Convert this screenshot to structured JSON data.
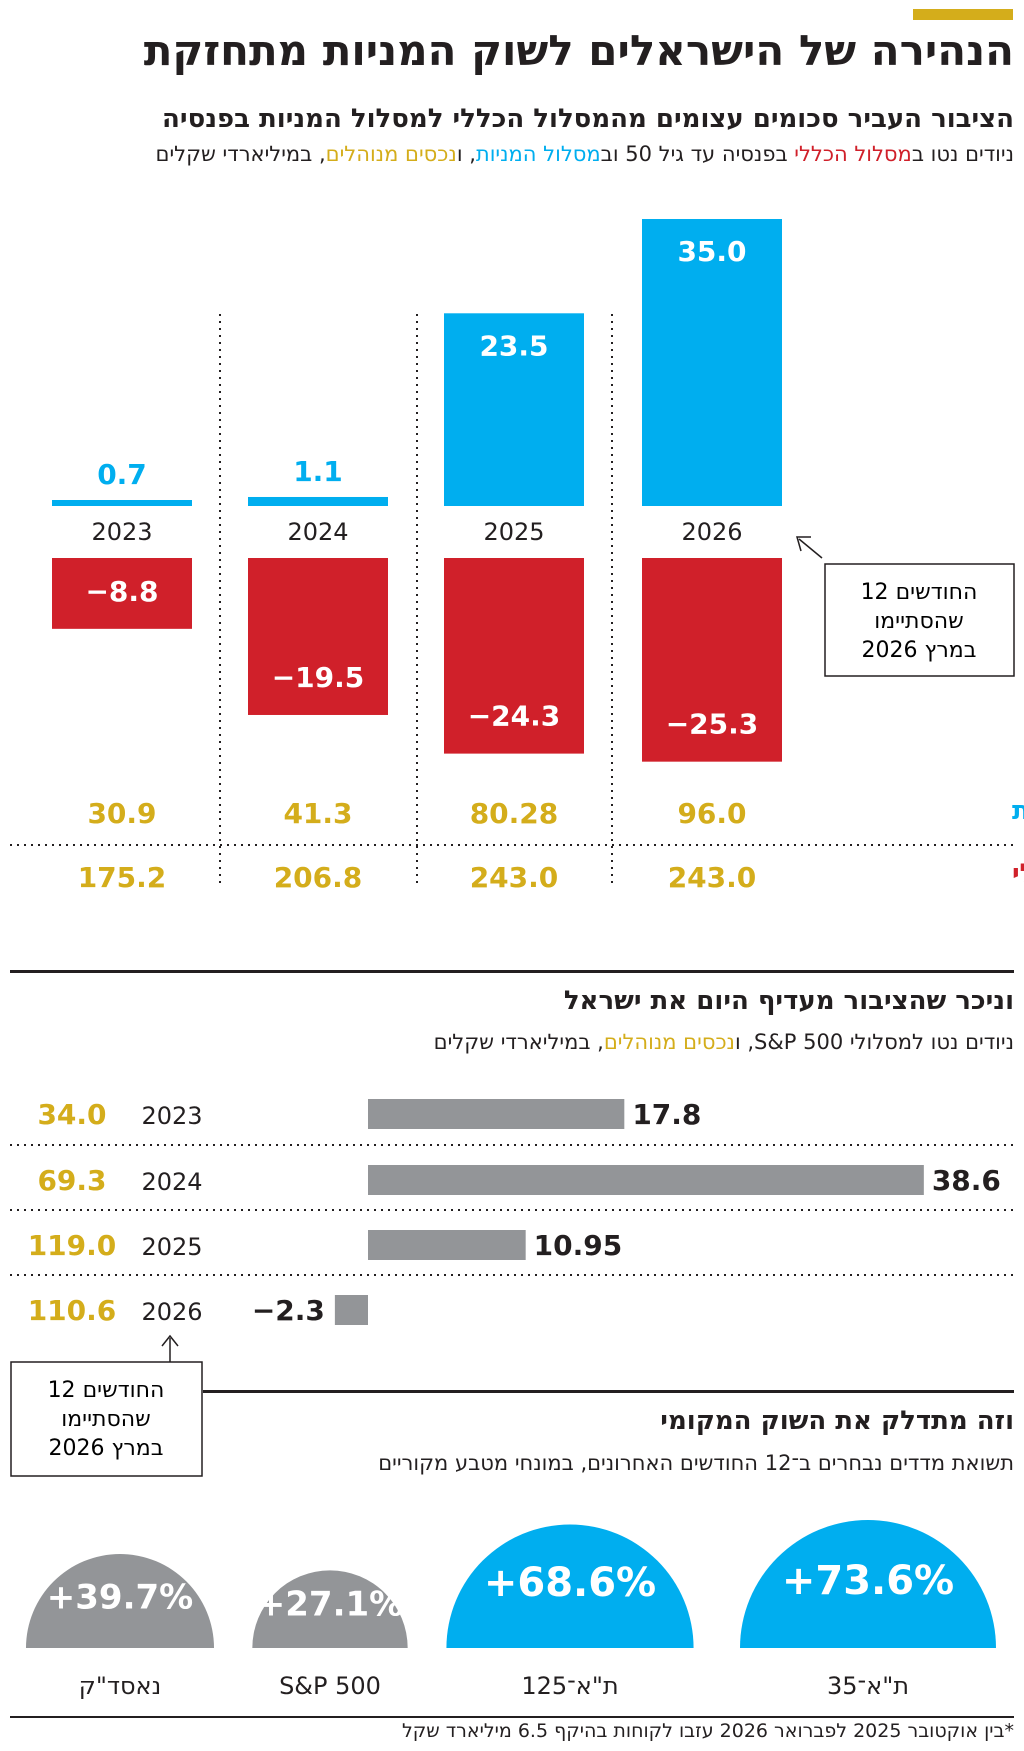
{
  "header": {
    "main_title": "הנהירה של הישראלים לשוק המניות מתחזקת"
  },
  "section1": {
    "title": "הציבור העביר סכומים עצומים מהמסלול הכללי למסלול המניות בפנסיה",
    "sub_parts": [
      "ניודים נטו ב",
      "מסלול הכללי",
      " בפנסיה עד גיל 50 וב",
      "מסלול המניות",
      ", ו",
      "נכסים מנוהלים",
      ", במיליארדי שקלים"
    ],
    "annotation": [
      "12 החודשים",
      "שהסתיימו",
      "במרץ 2026"
    ],
    "row_label_stocks": "מסלול מניות",
    "row_label_general": "מסלול כללי"
  },
  "section2": {
    "title": "וניכר שהציבור מעדיף היום את ישראל",
    "sub_parts": [
      "ניודים נטו למסלולי S&P 500, ו",
      "נכסים מנוהלים",
      ", במיליארדי שקלים"
    ],
    "annotation": [
      "12 החודשים",
      "שהסתיימו",
      "במרץ 2026"
    ]
  },
  "section3": {
    "title": "וזה מתדלק את השוק המקומי",
    "subtitle": "תשואת מדדים נבחרים ב־12 החודשים האחרונים, במונחי מטבע מקוריים"
  },
  "footnote": "*בין אוקטובר 2025 לפברואר 2026 עזבו לקוחות בהיקף 6.5 מיליארד שקל",
  "colors": {
    "blue": "#00aeef",
    "red": "#d0202a",
    "gold": "#d4ad1b",
    "gray": "#939598",
    "dark": "#231f20"
  },
  "chart_data": [
    {
      "type": "bar",
      "categories": [
        "2023",
        "2024",
        "2025",
        "2026"
      ],
      "series": [
        {
          "name": "מסלול המניות",
          "values": [
            0.7,
            1.1,
            23.5,
            35.0
          ],
          "labels": [
            "0.7",
            "1.1",
            "23.5",
            "35.0"
          ]
        },
        {
          "name": "מסלול הכללי",
          "values": [
            -8.8,
            -19.5,
            -24.3,
            -25.3
          ],
          "labels": [
            "−8.8",
            "−19.5",
            "−24.3",
            "−25.3"
          ]
        }
      ],
      "assets_stocks": [
        "30.9",
        "41.3",
        "80.28",
        "96.0"
      ],
      "assets_general": [
        "175.2",
        "206.8",
        "243.0",
        "243.0"
      ],
      "grid": false
    },
    {
      "type": "bar",
      "orientation": "horizontal",
      "categories": [
        "2023",
        "2024",
        "2025",
        "2026"
      ],
      "values": [
        17.8,
        38.6,
        10.95,
        -2.3
      ],
      "labels": [
        "17.8",
        "38.6",
        "10.95",
        "−2.3"
      ],
      "assets": [
        "34.0",
        "69.3",
        "119.0",
        "110.6"
      ]
    },
    {
      "type": "bar",
      "categories": [
        "ת\"א־35",
        "ת\"א־125",
        "S&P 500",
        "נאסד\"ק"
      ],
      "values": [
        73.6,
        68.6,
        27.1,
        39.7
      ],
      "labels": [
        "+73.6%",
        "+68.6%",
        "+27.1%",
        "+39.7%"
      ],
      "unit": "%"
    }
  ]
}
